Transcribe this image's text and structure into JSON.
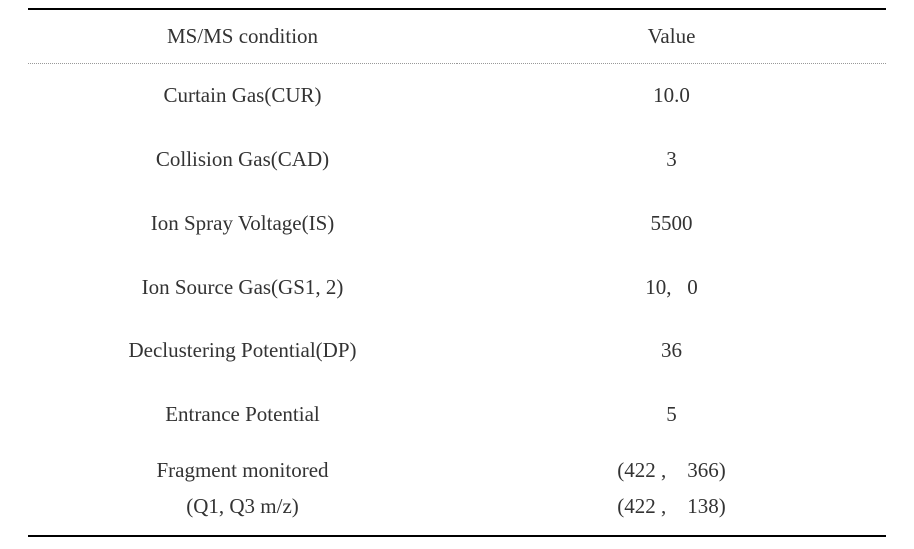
{
  "table": {
    "headers": {
      "condition": "MS/MS condition",
      "value": "Value"
    },
    "rows": [
      {
        "condition": "Curtain Gas(CUR)",
        "value": "10.0"
      },
      {
        "condition": "Collision Gas(CAD)",
        "value": "3"
      },
      {
        "condition": "Ion Spray Voltage(IS)",
        "value": "5500"
      },
      {
        "condition": "Ion Source Gas(GS1, 2)",
        "value": "10,   0"
      },
      {
        "condition": "Declustering Potential(DP)",
        "value": "36"
      },
      {
        "condition": "Entrance Potential",
        "value": "5"
      }
    ],
    "multilineRow": {
      "conditionLine1": "Fragment monitored",
      "conditionLine2": "(Q1, Q3 m/z)",
      "valueLine1": "(422 ,    366)",
      "valueLine2": "(422 ,    138)"
    }
  },
  "style": {
    "background_color": "#ffffff",
    "text_color": "#333333",
    "border_color": "#000000",
    "dotted_border_color": "#999999",
    "font_family": "Georgia, 'Times New Roman', serif",
    "header_fontsize": 21,
    "cell_fontsize": 21,
    "header_border_top_width": 2,
    "header_border_bottom_style": "dotted",
    "table_border_bottom_width": 2
  }
}
